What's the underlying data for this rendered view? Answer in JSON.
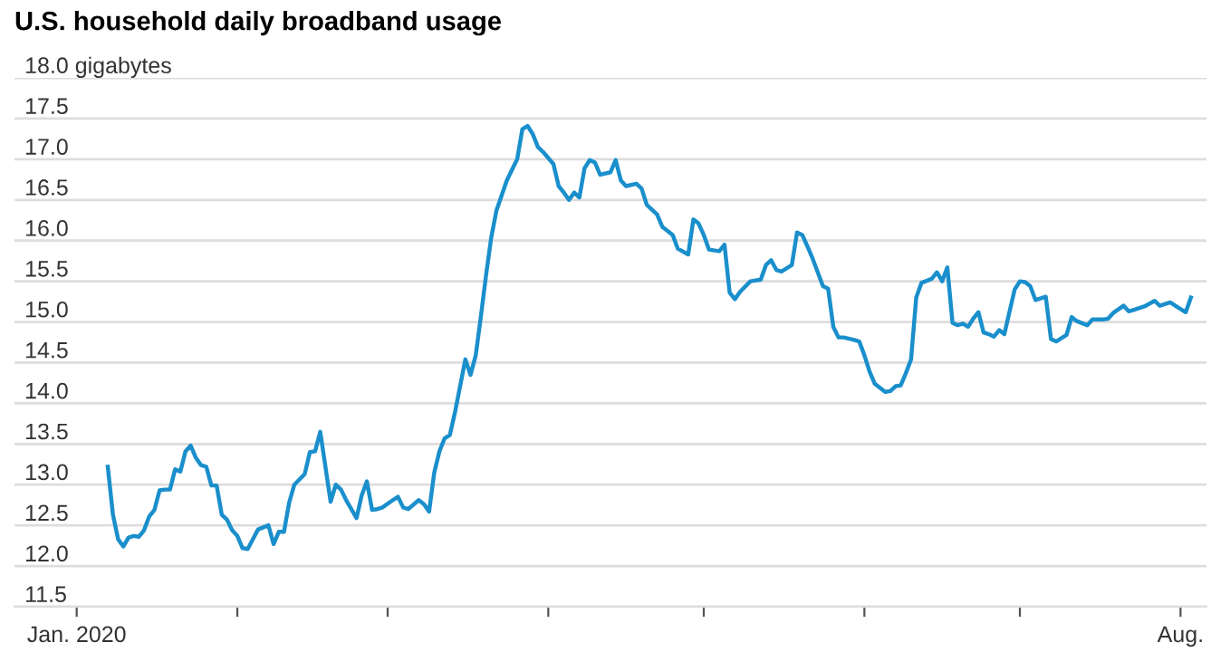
{
  "chart_data": {
    "type": "line",
    "title": "U.S. household daily broadband usage",
    "x": [
      "2020-01-07",
      "2020-01-08",
      "2020-01-09",
      "2020-01-10",
      "2020-01-11",
      "2020-01-12",
      "2020-01-13",
      "2020-01-14",
      "2020-01-15",
      "2020-01-16",
      "2020-01-17",
      "2020-01-18",
      "2020-01-19",
      "2020-01-20",
      "2020-01-21",
      "2020-01-22",
      "2020-01-23",
      "2020-01-24",
      "2020-01-25",
      "2020-01-26",
      "2020-01-27",
      "2020-01-28",
      "2020-01-29",
      "2020-01-30",
      "2020-01-31",
      "2020-02-01",
      "2020-02-02",
      "2020-02-03",
      "2020-02-04",
      "2020-02-05",
      "2020-02-07",
      "2020-02-08",
      "2020-02-09",
      "2020-02-10",
      "2020-02-11",
      "2020-02-12",
      "2020-02-14",
      "2020-02-15",
      "2020-02-16",
      "2020-02-17",
      "2020-02-18",
      "2020-02-19",
      "2020-02-20",
      "2020-02-21",
      "2020-02-22",
      "2020-02-24",
      "2020-02-25",
      "2020-02-26",
      "2020-02-27",
      "2020-02-28",
      "2020-02-29",
      "2020-03-02",
      "2020-03-03",
      "2020-03-04",
      "2020-03-05",
      "2020-03-07",
      "2020-03-08",
      "2020-03-09",
      "2020-03-10",
      "2020-03-11",
      "2020-03-12",
      "2020-03-13",
      "2020-03-14",
      "2020-03-16",
      "2020-03-17",
      "2020-03-18",
      "2020-03-19",
      "2020-03-20",
      "2020-03-21",
      "2020-03-22",
      "2020-03-24",
      "2020-03-26",
      "2020-03-27",
      "2020-03-28",
      "2020-03-29",
      "2020-03-30",
      "2020-03-31",
      "2020-04-02",
      "2020-04-03",
      "2020-04-04",
      "2020-04-05",
      "2020-04-06",
      "2020-04-07",
      "2020-04-08",
      "2020-04-09",
      "2020-04-10",
      "2020-04-11",
      "2020-04-13",
      "2020-04-14",
      "2020-04-15",
      "2020-04-16",
      "2020-04-18",
      "2020-04-19",
      "2020-04-20",
      "2020-04-22",
      "2020-04-23",
      "2020-04-25",
      "2020-04-26",
      "2020-04-28",
      "2020-04-29",
      "2020-04-30",
      "2020-05-01",
      "2020-05-02",
      "2020-05-04",
      "2020-05-05",
      "2020-05-06",
      "2020-05-07",
      "2020-05-08",
      "2020-05-10",
      "2020-05-12",
      "2020-05-13",
      "2020-05-14",
      "2020-05-15",
      "2020-05-16",
      "2020-05-18",
      "2020-05-19",
      "2020-05-20",
      "2020-05-21",
      "2020-05-22",
      "2020-05-24",
      "2020-05-25",
      "2020-05-26",
      "2020-05-27",
      "2020-05-28",
      "2020-05-30",
      "2020-05-31",
      "2020-06-01",
      "2020-06-02",
      "2020-06-03",
      "2020-06-05",
      "2020-06-06",
      "2020-06-07",
      "2020-06-08",
      "2020-06-09",
      "2020-06-10",
      "2020-06-11",
      "2020-06-12",
      "2020-06-14",
      "2020-06-15",
      "2020-06-16",
      "2020-06-17",
      "2020-06-18",
      "2020-06-19",
      "2020-06-20",
      "2020-06-21",
      "2020-06-22",
      "2020-06-23",
      "2020-06-24",
      "2020-06-25",
      "2020-06-26",
      "2020-06-27",
      "2020-06-28",
      "2020-06-30",
      "2020-07-01",
      "2020-07-02",
      "2020-07-03",
      "2020-07-04",
      "2020-07-06",
      "2020-07-07",
      "2020-07-08",
      "2020-07-10",
      "2020-07-11",
      "2020-07-12",
      "2020-07-14",
      "2020-07-15",
      "2020-07-17",
      "2020-07-18",
      "2020-07-19",
      "2020-07-21",
      "2020-07-22",
      "2020-07-23",
      "2020-07-25",
      "2020-07-27",
      "2020-07-28",
      "2020-07-30",
      "2020-07-31",
      "2020-08-02",
      "2020-08-03"
    ],
    "series": [
      {
        "color": "#1a8fcc",
        "values": [
          13.22,
          12.63,
          12.33,
          12.24,
          12.35,
          12.37,
          12.36,
          12.44,
          12.61,
          12.69,
          12.93,
          12.94,
          12.94,
          13.19,
          13.16,
          13.41,
          13.48,
          13.33,
          13.24,
          13.22,
          12.99,
          12.99,
          12.63,
          12.57,
          12.44,
          12.37,
          12.22,
          12.21,
          12.33,
          12.45,
          12.5,
          12.27,
          12.42,
          12.42,
          12.78,
          13.0,
          13.13,
          13.4,
          13.41,
          13.65,
          13.22,
          12.79,
          13.0,
          12.94,
          12.81,
          12.59,
          12.87,
          13.04,
          12.69,
          12.7,
          12.72,
          12.81,
          12.85,
          12.72,
          12.7,
          12.81,
          12.76,
          12.67,
          13.15,
          13.41,
          13.57,
          13.61,
          13.89,
          14.54,
          14.35,
          14.59,
          15.07,
          15.58,
          16.04,
          16.37,
          16.74,
          17.0,
          17.37,
          17.41,
          17.31,
          17.15,
          17.09,
          16.94,
          16.67,
          16.59,
          16.5,
          16.59,
          16.53,
          16.89,
          16.99,
          16.96,
          16.81,
          16.84,
          16.99,
          16.74,
          16.67,
          16.7,
          16.64,
          16.44,
          16.32,
          16.17,
          16.07,
          15.9,
          15.83,
          16.26,
          16.21,
          16.07,
          15.89,
          15.87,
          15.95,
          15.36,
          15.28,
          15.37,
          15.5,
          15.52,
          15.7,
          15.76,
          15.64,
          15.62,
          15.7,
          16.1,
          16.07,
          15.93,
          15.78,
          15.44,
          15.41,
          14.94,
          14.81,
          14.81,
          14.78,
          14.76,
          14.59,
          14.39,
          14.24,
          14.14,
          14.15,
          14.21,
          14.22,
          14.37,
          14.54,
          15.3,
          15.48,
          15.53,
          15.61,
          15.5,
          15.67,
          14.99,
          14.96,
          14.98,
          14.94,
          15.04,
          15.12,
          14.87,
          14.85,
          14.82,
          14.9,
          14.85,
          15.4,
          15.5,
          15.49,
          15.44,
          15.27,
          15.31,
          14.79,
          14.76,
          14.84,
          15.06,
          15.01,
          14.96,
          15.03,
          15.03,
          15.04,
          15.11,
          15.2,
          15.13,
          15.15,
          15.19,
          15.26,
          15.2,
          15.24,
          15.2,
          15.12,
          15.3
        ]
      }
    ],
    "xlim": [
      "2019-12-20",
      "2020-08-06"
    ],
    "xticks": [
      {
        "value": "2020-01-01",
        "label": "Jan. 2020"
      },
      {
        "value": "2020-02-01",
        "label": null
      },
      {
        "value": "2020-03-01",
        "label": null
      },
      {
        "value": "2020-04-01",
        "label": null
      },
      {
        "value": "2020-05-01",
        "label": null
      },
      {
        "value": "2020-06-01",
        "label": null
      },
      {
        "value": "2020-07-01",
        "label": null
      },
      {
        "value": "2020-08-01",
        "label": "Aug."
      }
    ],
    "ylim": [
      11.5,
      18.0
    ],
    "yticks": [
      {
        "value": 11.5,
        "label": "11.5"
      },
      {
        "value": 12.0,
        "label": "12.0"
      },
      {
        "value": 12.5,
        "label": "12.5"
      },
      {
        "value": 13.0,
        "label": "13.0"
      },
      {
        "value": 13.5,
        "label": "13.5"
      },
      {
        "value": 14.0,
        "label": "14.0"
      },
      {
        "value": 14.5,
        "label": "14.5"
      },
      {
        "value": 15.0,
        "label": "15.0"
      },
      {
        "value": 15.5,
        "label": "15.5"
      },
      {
        "value": 16.0,
        "label": "16.0"
      },
      {
        "value": 16.5,
        "label": "16.5"
      },
      {
        "value": 17.0,
        "label": "17.0"
      },
      {
        "value": 17.5,
        "label": "17.5"
      },
      {
        "value": 18.0,
        "label": "18.0 gigabytes"
      }
    ],
    "grid": "y",
    "legend": false,
    "marker": "none",
    "line_style": "solid"
  }
}
